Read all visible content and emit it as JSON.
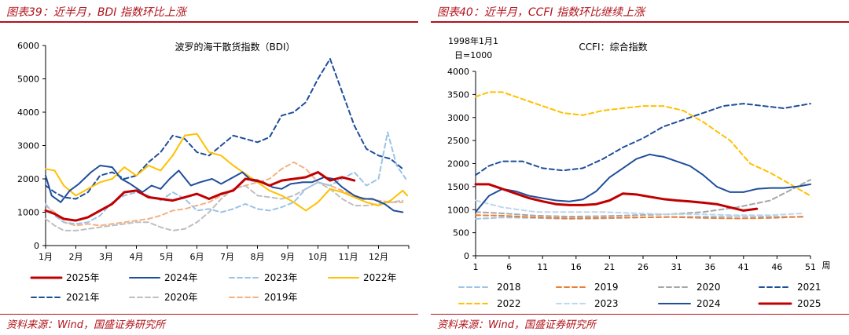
{
  "left_panel": {
    "title": "图表39：近半月，BDI 指数环比上涨",
    "source": "资料来源：Wind，国盛证券研究所"
  },
  "right_panel": {
    "title": "图表40：近半月，CCFI 指数环比继续上涨",
    "source": "资料来源：Wind，国盛证券研究所"
  },
  "chart_data": [
    {
      "type": "line",
      "title": "波罗的海干散货指数（BDI）",
      "ylim": [
        0,
        6000
      ],
      "yticks": [
        0,
        1000,
        2000,
        3000,
        4000,
        5000,
        6000
      ],
      "xlim": [
        1,
        13
      ],
      "xtick_labels": [
        "1月",
        "2月",
        "3月",
        "4月",
        "5月",
        "6月",
        "7月",
        "8月",
        "9月",
        "10月",
        "11月",
        "12月"
      ],
      "grid": false,
      "legend_position": "bottom",
      "series": [
        {
          "name": "2025年",
          "color": "#c00000",
          "style": "solid",
          "width": 3,
          "x": [
            1.0,
            1.3,
            1.6,
            2.0,
            2.4,
            2.8,
            3.2,
            3.6,
            4.0,
            4.4,
            4.8,
            5.2,
            5.6,
            6.0,
            6.4,
            6.8,
            7.2,
            7.6,
            8.0,
            8.4,
            8.8,
            9.2,
            9.6,
            10.0,
            10.4,
            10.8,
            11.2
          ],
          "y": [
            1050,
            950,
            800,
            750,
            850,
            1050,
            1250,
            1600,
            1650,
            1450,
            1400,
            1350,
            1450,
            1550,
            1400,
            1550,
            1650,
            2000,
            1950,
            1800,
            1950,
            2000,
            2050,
            2200,
            1950,
            2050,
            1950
          ]
        },
        {
          "name": "2024年",
          "color": "#1f4e9a",
          "style": "solid",
          "width": 2,
          "x": [
            1.0,
            1.2,
            1.5,
            1.8,
            2.1,
            2.5,
            2.8,
            3.2,
            3.5,
            3.8,
            4.2,
            4.5,
            4.8,
            5.1,
            5.4,
            5.8,
            6.1,
            6.5,
            6.8,
            7.1,
            7.5,
            7.8,
            8.2,
            8.5,
            8.8,
            9.1,
            9.5,
            9.8,
            10.2,
            10.5,
            10.8,
            11.2,
            11.5,
            11.8,
            12.2,
            12.5,
            12.8
          ],
          "y": [
            2100,
            1500,
            1300,
            1650,
            1850,
            2200,
            2400,
            2350,
            2000,
            1850,
            1600,
            1800,
            1700,
            2000,
            2250,
            1800,
            1900,
            2000,
            1850,
            2000,
            2200,
            1950,
            1900,
            1750,
            1700,
            1850,
            1900,
            1900,
            2050,
            2000,
            1750,
            1500,
            1400,
            1400,
            1250,
            1050,
            1000
          ]
        },
        {
          "name": "2023年",
          "color": "#9dc3e6",
          "style": "dashed",
          "width": 2,
          "x": [
            1.0,
            1.3,
            1.6,
            2.0,
            2.4,
            2.8,
            3.2,
            3.6,
            4.0,
            4.4,
            4.8,
            5.2,
            5.6,
            6.0,
            6.4,
            6.8,
            7.2,
            7.6,
            8.0,
            8.4,
            8.8,
            9.2,
            9.6,
            10.0,
            10.4,
            10.8,
            11.2,
            11.6,
            12.0,
            12.3,
            12.6,
            12.9
          ],
          "y": [
            1250,
            900,
            700,
            650,
            700,
            900,
            1300,
            1500,
            1600,
            1500,
            1350,
            1600,
            1400,
            1050,
            1100,
            1000,
            1100,
            1250,
            1100,
            1050,
            1150,
            1300,
            1700,
            1900,
            1800,
            2000,
            2200,
            1800,
            2000,
            3400,
            2400,
            2000
          ]
        },
        {
          "name": "2022年",
          "color": "#ffc000",
          "style": "solid",
          "width": 2,
          "x": [
            1.0,
            1.3,
            1.6,
            2.0,
            2.4,
            2.8,
            3.2,
            3.6,
            4.0,
            4.4,
            4.8,
            5.2,
            5.6,
            6.0,
            6.4,
            6.8,
            7.2,
            7.6,
            8.0,
            8.4,
            8.8,
            9.2,
            9.6,
            10.0,
            10.4,
            10.8,
            11.2,
            11.6,
            12.0,
            12.4,
            12.8,
            12.95
          ],
          "y": [
            2300,
            2250,
            1800,
            1500,
            1700,
            1900,
            2000,
            2350,
            2100,
            2400,
            2250,
            2700,
            3300,
            3350,
            2800,
            2700,
            2400,
            2150,
            1900,
            1650,
            1500,
            1300,
            1050,
            1300,
            1700,
            1600,
            1450,
            1300,
            1200,
            1350,
            1650,
            1500
          ]
        },
        {
          "name": "2021年",
          "color": "#1f4e9a",
          "style": "dashed",
          "width": 2,
          "x": [
            1.0,
            1.3,
            1.6,
            2.0,
            2.4,
            2.8,
            3.2,
            3.6,
            4.0,
            4.4,
            4.8,
            5.2,
            5.6,
            6.0,
            6.4,
            6.8,
            7.2,
            7.6,
            8.0,
            8.4,
            8.8,
            9.2,
            9.6,
            10.0,
            10.4,
            10.8,
            11.2,
            11.6,
            12.0,
            12.4,
            12.8
          ],
          "y": [
            1800,
            1600,
            1450,
            1400,
            1600,
            2100,
            2200,
            2000,
            2100,
            2500,
            2800,
            3300,
            3200,
            2800,
            2700,
            3000,
            3300,
            3200,
            3100,
            3250,
            3900,
            4000,
            4300,
            5000,
            5600,
            4600,
            3600,
            2900,
            2700,
            2600,
            2300
          ]
        },
        {
          "name": "2020年",
          "color": "#bfbfbf",
          "style": "dashed",
          "width": 2,
          "x": [
            1.0,
            1.3,
            1.6,
            2.0,
            2.4,
            2.8,
            3.2,
            3.6,
            4.0,
            4.4,
            4.8,
            5.2,
            5.6,
            6.0,
            6.4,
            6.8,
            7.2,
            7.6,
            8.0,
            8.4,
            8.8,
            9.2,
            9.6,
            10.0,
            10.4,
            10.8,
            11.2,
            11.6,
            12.0,
            12.4,
            12.8
          ],
          "y": [
            800,
            600,
            450,
            450,
            500,
            550,
            600,
            650,
            700,
            700,
            550,
            450,
            500,
            700,
            1000,
            1400,
            1700,
            1800,
            1500,
            1450,
            1400,
            1500,
            1700,
            1900,
            1700,
            1400,
            1200,
            1200,
            1250,
            1300,
            1350
          ]
        },
        {
          "name": "2019年",
          "color": "#f4b183",
          "style": "dashed",
          "width": 2,
          "x": [
            1.0,
            1.3,
            1.6,
            2.0,
            2.4,
            2.8,
            3.2,
            3.6,
            4.0,
            4.4,
            4.8,
            5.2,
            5.6,
            6.0,
            6.4,
            6.8,
            7.2,
            7.6,
            8.0,
            8.4,
            8.8,
            9.2,
            9.6,
            10.0,
            10.4,
            10.8,
            11.2,
            11.6,
            12.0,
            12.4,
            12.8
          ],
          "y": [
            1200,
            1000,
            700,
            600,
            650,
            600,
            650,
            700,
            750,
            800,
            900,
            1050,
            1100,
            1200,
            1300,
            1500,
            1700,
            1800,
            1900,
            2000,
            2300,
            2500,
            2300,
            1900,
            1800,
            1650,
            1500,
            1400,
            1350,
            1300,
            1300
          ]
        }
      ]
    },
    {
      "type": "line",
      "title": "CCFI：综合指数",
      "unit_note_line1": "1998年1月1",
      "unit_note_line2": "日=1000",
      "ylim": [
        0,
        4000
      ],
      "yticks": [
        0,
        500,
        1000,
        1500,
        2000,
        2500,
        3000,
        3500,
        4000
      ],
      "xlim": [
        1,
        51
      ],
      "xticks": [
        1,
        6,
        11,
        16,
        21,
        26,
        31,
        36,
        41,
        46,
        51
      ],
      "xlabel": "周",
      "grid": false,
      "legend_position": "bottom",
      "series": [
        {
          "name": "2018",
          "color": "#9dc3e6",
          "style": "dashed",
          "width": 2,
          "x": [
            1,
            5,
            10,
            15,
            20,
            25,
            30,
            35,
            40,
            45,
            50
          ],
          "y": [
            800,
            830,
            820,
            800,
            810,
            830,
            840,
            850,
            860,
            850,
            840
          ]
        },
        {
          "name": "2019",
          "color": "#ed7d31",
          "style": "dashed",
          "width": 2,
          "x": [
            1,
            5,
            10,
            15,
            20,
            25,
            30,
            35,
            40,
            45,
            50
          ],
          "y": [
            880,
            870,
            830,
            810,
            820,
            830,
            840,
            820,
            810,
            820,
            850
          ]
        },
        {
          "name": "2020",
          "color": "#a6a6a6",
          "style": "dashed",
          "width": 2,
          "x": [
            1,
            5,
            10,
            15,
            20,
            25,
            30,
            35,
            40,
            45,
            51
          ],
          "y": [
            950,
            920,
            870,
            850,
            860,
            880,
            900,
            950,
            1050,
            1200,
            1650
          ]
        },
        {
          "name": "2021",
          "color": "#1f4e9a",
          "style": "dashed",
          "width": 2,
          "x": [
            1,
            3,
            5,
            8,
            11,
            14,
            17,
            20,
            23,
            26,
            29,
            32,
            35,
            38,
            41,
            44,
            47,
            51
          ],
          "y": [
            1750,
            1950,
            2050,
            2050,
            1900,
            1850,
            1900,
            2100,
            2350,
            2550,
            2800,
            2950,
            3100,
            3250,
            3300,
            3250,
            3200,
            3300
          ]
        },
        {
          "name": "2022",
          "color": "#ffc000",
          "style": "dashed",
          "width": 2,
          "x": [
            1,
            3,
            5,
            8,
            11,
            14,
            17,
            20,
            23,
            26,
            29,
            32,
            35,
            37,
            39,
            42,
            45,
            48,
            51
          ],
          "y": [
            3450,
            3550,
            3550,
            3400,
            3250,
            3100,
            3050,
            3150,
            3200,
            3250,
            3250,
            3150,
            2900,
            2700,
            2500,
            2000,
            1800,
            1550,
            1300
          ]
        },
        {
          "name": "2023",
          "color": "#bdd7ee",
          "style": "dashed",
          "width": 2,
          "x": [
            1,
            5,
            10,
            15,
            20,
            25,
            30,
            35,
            40,
            45,
            50
          ],
          "y": [
            1200,
            1050,
            950,
            950,
            950,
            920,
            900,
            900,
            880,
            880,
            920
          ]
        },
        {
          "name": "2024",
          "color": "#1f4e9a",
          "style": "solid",
          "width": 2,
          "x": [
            1,
            3,
            5,
            7,
            9,
            11,
            13,
            15,
            17,
            19,
            21,
            23,
            25,
            27,
            28,
            29,
            31,
            33,
            35,
            37,
            39,
            41,
            43,
            45,
            47,
            49,
            51
          ],
          "y": [
            950,
            1300,
            1450,
            1400,
            1300,
            1250,
            1200,
            1180,
            1220,
            1400,
            1700,
            1900,
            2100,
            2200,
            2170,
            2150,
            2050,
            1950,
            1750,
            1500,
            1380,
            1380,
            1450,
            1470,
            1470,
            1500,
            1550
          ]
        },
        {
          "name": "2025",
          "color": "#c00000",
          "style": "solid",
          "width": 3,
          "x": [
            1,
            3,
            5,
            7,
            9,
            11,
            13,
            15,
            17,
            19,
            21,
            23,
            25,
            27,
            29,
            31,
            33,
            35,
            37,
            39,
            41,
            43
          ],
          "y": [
            1550,
            1550,
            1450,
            1350,
            1250,
            1180,
            1120,
            1100,
            1100,
            1120,
            1200,
            1350,
            1330,
            1280,
            1230,
            1200,
            1180,
            1150,
            1120,
            1050,
            980,
            1020
          ]
        }
      ]
    }
  ]
}
